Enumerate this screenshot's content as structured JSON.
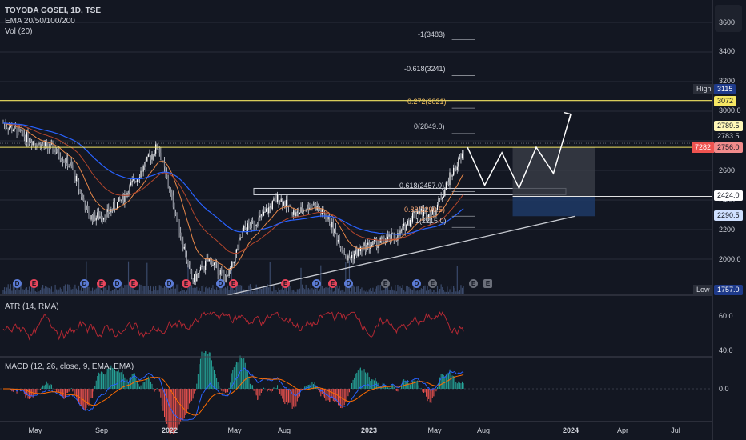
{
  "header": {
    "title": "TOYODA GOSEI, 1D, TSE",
    "indicators": "EMA 20/50/100/200",
    "volume": "Vol (20)"
  },
  "panes": {
    "atr_label": "ATR (14, RMA)",
    "macd_label": "MACD (12, 26, close, 9, EMA, EMA)"
  },
  "price_axis": {
    "ticks": [
      "3600",
      "3400",
      "3200",
      "3000.0",
      "2800",
      "2600",
      "2400",
      "2200",
      "2000.0"
    ],
    "atr_ticks": [
      "60.0",
      "40.0"
    ],
    "macd_ticks": [
      "0.0"
    ]
  },
  "price_tags": {
    "high_label": "High",
    "high_value": "3115",
    "resistance": "3072",
    "fib_top": "2789.5",
    "last": "2783.5",
    "current_code": "7282",
    "current": "2756.0",
    "box_top": "2424.0",
    "box_bottom": "2290.5",
    "low_label": "Low",
    "low_value": "1757.0"
  },
  "time_axis": [
    "May",
    "Sep",
    "2022",
    "May",
    "Aug",
    "2023",
    "May",
    "Aug",
    "2024",
    "Apr",
    "Jul"
  ],
  "fib_levels": [
    {
      "label": "-1(3483)",
      "price": 3483
    },
    {
      "label": "-0.618(3241)",
      "price": 3241
    },
    {
      "label": "-0.272(3021)",
      "price": 3021
    },
    {
      "label": "0(2849.0)",
      "price": 2849
    },
    {
      "label": "0.618(2457.0)",
      "price": 2457
    },
    {
      "label": "0.88(2290.5)",
      "price": 2290.5
    },
    {
      "label": "1(2215.0)",
      "price": 2215
    }
  ],
  "event_badges": [
    "D",
    "E",
    "D",
    "E",
    "D",
    "E",
    "D",
    "E",
    "D",
    "E",
    "E",
    "D",
    "E",
    "D",
    "E",
    "E",
    "D",
    "E",
    "E"
  ],
  "colors": {
    "background": "#131722",
    "grid": "#2a2e39",
    "up": "#d1d4dc",
    "down": "#d1d4dc",
    "ema20": "#e8884a",
    "ema50": "#b4462c",
    "ema100": "#2962ff",
    "resistance": "#f5e663",
    "trendline": "#c8cbd2",
    "atr": "#b22833",
    "macd": "#2962ff",
    "signal": "#ff6d00",
    "hist_pos": "#26a69a",
    "hist_neg": "#ef5350"
  },
  "chart_data": {
    "type": "candlestick",
    "title": "TOYODA GOSEI, 1D, TSE",
    "ylim": [
      1700,
      3700
    ],
    "x": [
      "2021-05",
      "2021-09",
      "2022-01",
      "2022-05",
      "2022-08",
      "2023-01",
      "2023-05",
      "2023-08",
      "2024-01",
      "2024-04",
      "2024-07"
    ],
    "approx_close_path": [
      {
        "date": "2021-04",
        "close": 2920
      },
      {
        "date": "2021-05",
        "close": 2850
      },
      {
        "date": "2021-06",
        "close": 2780
      },
      {
        "date": "2021-07",
        "close": 2740
      },
      {
        "date": "2021-08",
        "close": 2620
      },
      {
        "date": "2021-09",
        "close": 2280
      },
      {
        "date": "2021-10",
        "close": 2300
      },
      {
        "date": "2021-11",
        "close": 2420
      },
      {
        "date": "2022-01",
        "close": 2770
      },
      {
        "date": "2022-02",
        "close": 2320
      },
      {
        "date": "2022-03",
        "close": 1850
      },
      {
        "date": "2022-04",
        "close": 2000
      },
      {
        "date": "2022-05",
        "close": 1860
      },
      {
        "date": "2022-06",
        "close": 2200
      },
      {
        "date": "2022-07",
        "close": 2280
      },
      {
        "date": "2022-08",
        "close": 2420
      },
      {
        "date": "2022-09",
        "close": 2300
      },
      {
        "date": "2022-10",
        "close": 2380
      },
      {
        "date": "2022-11",
        "close": 2250
      },
      {
        "date": "2022-12",
        "close": 2000
      },
      {
        "date": "2023-01",
        "close": 2080
      },
      {
        "date": "2023-03",
        "close": 2160
      },
      {
        "date": "2023-04",
        "close": 2330
      },
      {
        "date": "2023-05",
        "close": 2300
      },
      {
        "date": "2023-06",
        "close": 2560
      },
      {
        "date": "2023-07",
        "close": 2756
      }
    ],
    "high": 3115,
    "low": 1757,
    "resistance": 3072,
    "support_zone": [
      2290.5,
      2424
    ],
    "projection": [
      {
        "date": "2023-07",
        "price": 2756
      },
      {
        "date": "2023-08",
        "price": 2500
      },
      {
        "date": "2023-09",
        "price": 2720
      },
      {
        "date": "2023-10",
        "price": 2480
      },
      {
        "date": "2023-11",
        "price": 2756
      },
      {
        "date": "2023-12",
        "price": 2580
      },
      {
        "date": "2024-01",
        "price": 2980
      }
    ]
  }
}
